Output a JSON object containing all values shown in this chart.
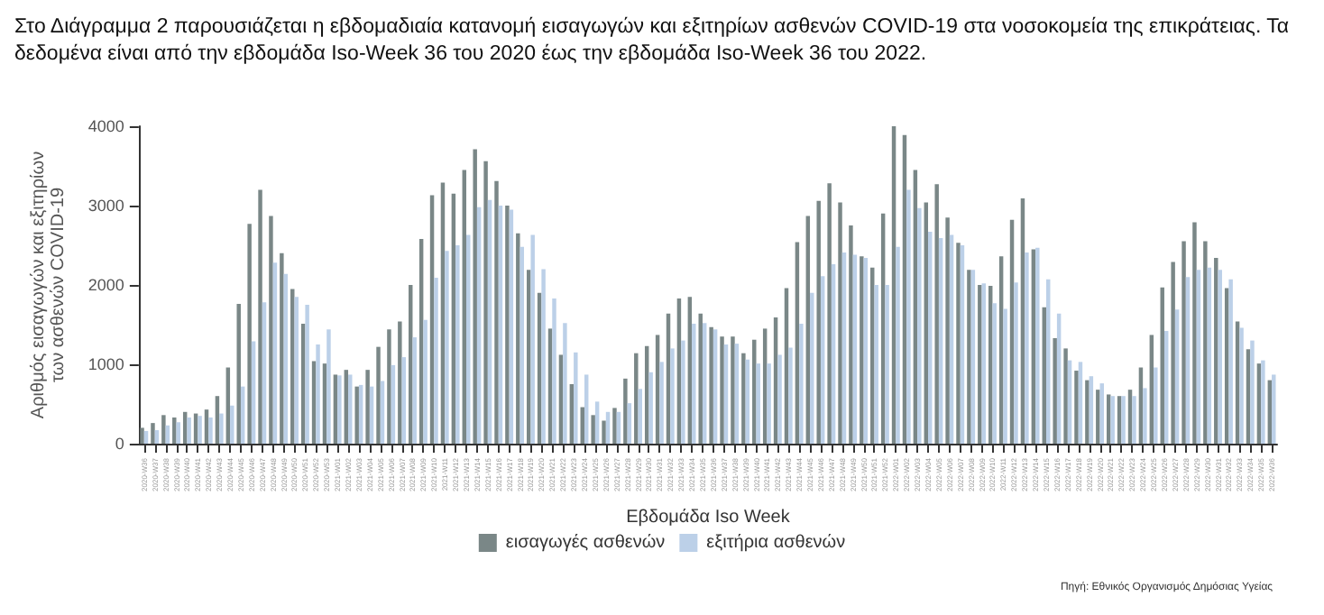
{
  "chart_data": {
    "type": "bar",
    "title": "Στο Διάγραμμα 2 παρουσιάζεται η εβδομαδιαία κατανομή εισαγωγών και εξιτηρίων ασθενών COVID-19 στα νοσοκομεία της επικράτειας.  Τα δεδομένα είναι από την εβδομάδα Iso-Week 36 του 2020 έως την εβδομάδα Iso-Week 36 του 2022.",
    "xlabel": "Εβδομάδα Iso Week",
    "ylabel": "Αριθμός εισαγωγών και εξιτηρίων\nτων ασθενών COVID-19",
    "annotations": [
      "Πηγή: Εθνικός Οργανισμός Δημόσιας Υγείας"
    ],
    "categories": [
      "2020-W36",
      "2020-W37",
      "2020-W38",
      "2020-W39",
      "2020-W40",
      "2020-W41",
      "2020-W42",
      "2020-W43",
      "2020-W44",
      "2020-W45",
      "2020-W46",
      "2020-W47",
      "2020-W48",
      "2020-W49",
      "2020-W50",
      "2020-W51",
      "2020-W52",
      "2020-W53",
      "2021-W01",
      "2021-W02",
      "2021-W03",
      "2021-W04",
      "2021-W05",
      "2021-W06",
      "2021-W07",
      "2021-W08",
      "2021-W09",
      "2021-W10",
      "2021-W11",
      "2021-W12",
      "2021-W13",
      "2021-W14",
      "2021-W15",
      "2021-W16",
      "2021-W17",
      "2021-W18",
      "2021-W19",
      "2021-W20",
      "2021-W21",
      "2021-W22",
      "2021-W23",
      "2021-W24",
      "2021-W25",
      "2021-W26",
      "2021-W27",
      "2021-W28",
      "2021-W29",
      "2021-W30",
      "2021-W31",
      "2021-W32",
      "2021-W33",
      "2021-W34",
      "2021-W35",
      "2021-W36",
      "2021-W37",
      "2021-W38",
      "2021-W39",
      "2021-W40",
      "2021-W41",
      "2021-W42",
      "2021-W43",
      "2021-W44",
      "2021-W45",
      "2021-W46",
      "2021-W47",
      "2021-W48",
      "2021-W49",
      "2021-W50",
      "2021-W51",
      "2021-W52",
      "2022-W01",
      "2022-W02",
      "2022-W03",
      "2022-W04",
      "2022-W05",
      "2022-W06",
      "2022-W07",
      "2022-W08",
      "2022-W09",
      "2022-W10",
      "2022-W11",
      "2022-W12",
      "2022-W13",
      "2022-W14",
      "2022-W15",
      "2022-W16",
      "2022-W17",
      "2022-W18",
      "2022-W19",
      "2022-W20",
      "2022-W21",
      "2022-W22",
      "2022-W23",
      "2022-W24",
      "2022-W25",
      "2022-W26",
      "2022-W27",
      "2022-W28",
      "2022-W29",
      "2022-W30",
      "2022-W31",
      "2022-W32",
      "2022-W33",
      "2022-W34",
      "2022-W35",
      "2022-W36"
    ],
    "series": [
      {
        "name": "εισαγωγές ασθενών",
        "color": "#7a8787",
        "values": [
          200,
          260,
          360,
          330,
          400,
          380,
          430,
          600,
          960,
          1760,
          2770,
          3200,
          2870,
          2400,
          1950,
          1510,
          1040,
          1010,
          870,
          930,
          720,
          930,
          1220,
          1440,
          1540,
          2000,
          2580,
          3130,
          3290,
          3150,
          3450,
          3710,
          3560,
          3310,
          3000,
          2650,
          2190,
          1900,
          1450,
          1120,
          750,
          460,
          360,
          290,
          450,
          820,
          1140,
          1230,
          1370,
          1640,
          1830,
          1850,
          1640,
          1470,
          1350,
          1350,
          1140,
          1310,
          1450,
          1590,
          1960,
          2540,
          2870,
          3060,
          3280,
          3040,
          2750,
          2360,
          2220,
          2900,
          4000,
          3890,
          3450,
          3040,
          3270,
          2850,
          2530,
          2190,
          2000,
          1990,
          2360,
          2820,
          3090,
          2450,
          1720,
          1330,
          1200,
          920,
          800,
          680,
          620,
          600,
          680,
          960,
          1370,
          1970,
          2290,
          2550,
          2790,
          2550,
          2340,
          1960,
          1540,
          1190,
          1010,
          800
        ]
      },
      {
        "name": "εξιτήρια ασθενών",
        "color": "#bcd0e8",
        "values": [
          160,
          170,
          230,
          270,
          330,
          350,
          330,
          380,
          480,
          720,
          1290,
          1780,
          2280,
          2140,
          1850,
          1750,
          1250,
          1440,
          860,
          870,
          740,
          720,
          790,
          990,
          1090,
          1340,
          1560,
          2090,
          2430,
          2500,
          2630,
          2980,
          3070,
          3000,
          2950,
          2480,
          2630,
          2200,
          1830,
          1520,
          1150,
          870,
          530,
          400,
          400,
          510,
          690,
          900,
          1030,
          1200,
          1300,
          1510,
          1520,
          1440,
          1250,
          1260,
          1060,
          1010,
          1010,
          1120,
          1210,
          1510,
          1900,
          2110,
          2260,
          2410,
          2380,
          2340,
          2000,
          2000,
          2480,
          3200,
          2970,
          2670,
          2590,
          2630,
          2500,
          2190,
          2020,
          1770,
          1700,
          2030,
          2410,
          2470,
          2070,
          1640,
          1050,
          1030,
          850,
          760,
          600,
          600,
          600,
          700,
          960,
          1420,
          1690,
          2100,
          2190,
          2220,
          2190,
          2070,
          1460,
          1300,
          1050,
          870
        ]
      }
    ],
    "ylim": [
      0,
      4000
    ],
    "yticks": [
      0,
      1000,
      2000,
      3000,
      4000
    ],
    "grid": false,
    "legend": "bottom"
  }
}
